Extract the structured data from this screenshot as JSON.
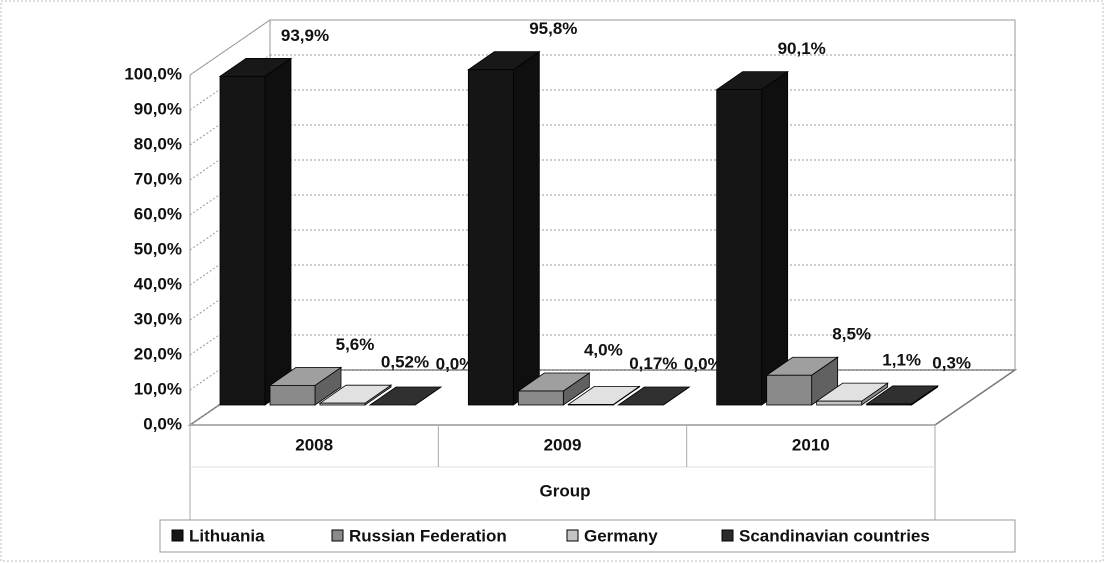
{
  "chart_data": {
    "type": "bar3d",
    "categories": [
      "2008",
      "2009",
      "2010"
    ],
    "x_label": "Group",
    "series": [
      {
        "name": "Lithuania",
        "color": "#151515",
        "values": [
          93.9,
          95.8,
          90.1
        ],
        "value_labels": [
          "93,9%",
          "95,8%",
          "90,1%"
        ]
      },
      {
        "name": "Russian Federation",
        "color": "#8a8a8a",
        "values": [
          5.6,
          4.0,
          8.5
        ],
        "value_labels": [
          "5,6%",
          "4,0%",
          "8,5%"
        ]
      },
      {
        "name": "Germany",
        "color": "#c4c4c4",
        "values": [
          0.52,
          0.17,
          1.1
        ],
        "value_labels": [
          "0,52%",
          "0,17%",
          "1,1%"
        ]
      },
      {
        "name": "Scandinavian countries",
        "color": "#2a2a2a",
        "values": [
          0.0,
          0.0,
          0.3
        ],
        "value_labels": [
          "0,0%",
          "0,0%",
          "0,3%"
        ]
      }
    ],
    "ylim": [
      0,
      100
    ],
    "yticks": [
      {
        "value": 0,
        "label": "0,0%"
      },
      {
        "value": 10,
        "label": "10,0%"
      },
      {
        "value": 20,
        "label": "20,0%"
      },
      {
        "value": 30,
        "label": "30,0%"
      },
      {
        "value": 40,
        "label": "40,0%"
      },
      {
        "value": 50,
        "label": "50,0%"
      },
      {
        "value": 60,
        "label": "60,0%"
      },
      {
        "value": 70,
        "label": "70,0%"
      },
      {
        "value": 80,
        "label": "80,0%"
      },
      {
        "value": 90,
        "label": "90,0%"
      },
      {
        "value": 100,
        "label": "100,0%"
      }
    ],
    "grid": true,
    "legend": "bottom"
  }
}
